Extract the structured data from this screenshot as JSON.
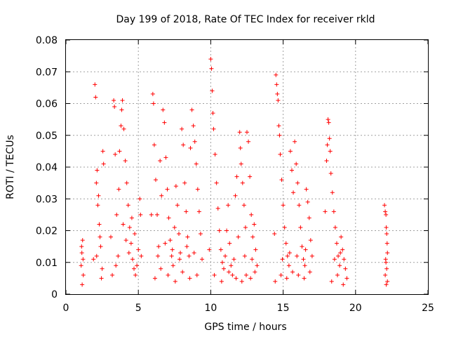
{
  "chart_data": {
    "type": "scatter",
    "title": "Day 199 of 2018, Rate Of TEC Index for receiver rkld",
    "xlabel": "GPS time / hours",
    "ylabel": "ROTI / TECUs",
    "xlim": [
      0,
      25
    ],
    "ylim": [
      0,
      0.08
    ],
    "x_ticks": [
      0,
      5,
      10,
      15,
      20,
      25
    ],
    "x_tick_labels": [
      "0",
      "5",
      "10",
      "15",
      "20",
      "25"
    ],
    "y_ticks": [
      0,
      0.01,
      0.02,
      0.03,
      0.04,
      0.05,
      0.06,
      0.07,
      0.08
    ],
    "y_tick_labels": [
      "0",
      "0.01",
      "0.02",
      "0.03",
      "0.04",
      "0.05",
      "0.06",
      "0.07",
      "0.08"
    ],
    "grid": true,
    "marker": "+",
    "color": "#ff0000",
    "series": [
      {
        "name": "ROTI",
        "points": [
          [
            1.05,
            0.009
          ],
          [
            1.1,
            0.013
          ],
          [
            1.15,
            0.017
          ],
          [
            1.2,
            0.006
          ],
          [
            1.12,
            0.003
          ],
          [
            1.18,
            0.011
          ],
          [
            1.08,
            0.015
          ],
          [
            1.9,
            0.011
          ],
          [
            2.0,
            0.066
          ],
          [
            2.05,
            0.062
          ],
          [
            2.1,
            0.035
          ],
          [
            2.15,
            0.039
          ],
          [
            2.2,
            0.028
          ],
          [
            2.3,
            0.022
          ],
          [
            2.4,
            0.015
          ],
          [
            2.5,
            0.008
          ],
          [
            2.55,
            0.045
          ],
          [
            2.6,
            0.041
          ],
          [
            2.45,
            0.005
          ],
          [
            2.35,
            0.018
          ],
          [
            2.25,
            0.031
          ],
          [
            2.12,
            0.012
          ],
          [
            3.1,
            0.018
          ],
          [
            3.3,
            0.061
          ],
          [
            3.35,
            0.059
          ],
          [
            3.4,
            0.044
          ],
          [
            3.5,
            0.025
          ],
          [
            3.6,
            0.012
          ],
          [
            3.7,
            0.045
          ],
          [
            3.8,
            0.053
          ],
          [
            3.85,
            0.058
          ],
          [
            3.9,
            0.061
          ],
          [
            4.0,
            0.052
          ],
          [
            4.1,
            0.042
          ],
          [
            4.2,
            0.035
          ],
          [
            4.3,
            0.028
          ],
          [
            4.4,
            0.021
          ],
          [
            4.5,
            0.016
          ],
          [
            4.6,
            0.011
          ],
          [
            4.7,
            0.008
          ],
          [
            4.8,
            0.006
          ],
          [
            4.9,
            0.009
          ],
          [
            5.0,
            0.014
          ],
          [
            5.1,
            0.03
          ],
          [
            5.15,
            0.025
          ],
          [
            5.2,
            0.012
          ],
          [
            3.2,
            0.006
          ],
          [
            3.45,
            0.009
          ],
          [
            3.65,
            0.033
          ],
          [
            3.95,
            0.022
          ],
          [
            4.15,
            0.017
          ],
          [
            4.35,
            0.013
          ],
          [
            4.55,
            0.024
          ],
          [
            4.75,
            0.019
          ],
          [
            5.9,
            0.025
          ],
          [
            6.0,
            0.063
          ],
          [
            6.05,
            0.06
          ],
          [
            6.1,
            0.047
          ],
          [
            6.2,
            0.036
          ],
          [
            6.3,
            0.025
          ],
          [
            6.4,
            0.015
          ],
          [
            6.5,
            0.042
          ],
          [
            6.6,
            0.031
          ],
          [
            6.7,
            0.058
          ],
          [
            6.8,
            0.054
          ],
          [
            6.9,
            0.043
          ],
          [
            7.0,
            0.033
          ],
          [
            7.1,
            0.024
          ],
          [
            7.2,
            0.017
          ],
          [
            7.3,
            0.012
          ],
          [
            7.4,
            0.009
          ],
          [
            7.5,
            0.021
          ],
          [
            7.6,
            0.034
          ],
          [
            7.7,
            0.028
          ],
          [
            7.8,
            0.019
          ],
          [
            7.9,
            0.013
          ],
          [
            8.0,
            0.052
          ],
          [
            8.1,
            0.047
          ],
          [
            8.2,
            0.035
          ],
          [
            8.3,
            0.026
          ],
          [
            8.4,
            0.018
          ],
          [
            8.5,
            0.012
          ],
          [
            8.6,
            0.046
          ],
          [
            8.7,
            0.058
          ],
          [
            8.8,
            0.053
          ],
          [
            8.9,
            0.048
          ],
          [
            9.0,
            0.041
          ],
          [
            9.1,
            0.033
          ],
          [
            9.2,
            0.026
          ],
          [
            9.3,
            0.019
          ],
          [
            9.4,
            0.011
          ],
          [
            6.15,
            0.005
          ],
          [
            6.55,
            0.008
          ],
          [
            7.05,
            0.006
          ],
          [
            7.55,
            0.004
          ],
          [
            8.05,
            0.007
          ],
          [
            8.55,
            0.005
          ],
          [
            9.05,
            0.006
          ],
          [
            6.35,
            0.012
          ],
          [
            6.85,
            0.016
          ],
          [
            7.35,
            0.014
          ],
          [
            7.85,
            0.011
          ],
          [
            8.35,
            0.015
          ],
          [
            8.85,
            0.013
          ],
          [
            9.9,
            0.014
          ],
          [
            10.0,
            0.074
          ],
          [
            10.05,
            0.071
          ],
          [
            10.1,
            0.064
          ],
          [
            10.15,
            0.057
          ],
          [
            10.2,
            0.052
          ],
          [
            10.3,
            0.044
          ],
          [
            10.4,
            0.035
          ],
          [
            10.5,
            0.027
          ],
          [
            10.6,
            0.02
          ],
          [
            10.7,
            0.014
          ],
          [
            10.8,
            0.01
          ],
          [
            10.9,
            0.008
          ],
          [
            11.0,
            0.012
          ],
          [
            11.1,
            0.02
          ],
          [
            11.2,
            0.028
          ],
          [
            11.3,
            0.016
          ],
          [
            11.4,
            0.009
          ],
          [
            11.5,
            0.006
          ],
          [
            11.6,
            0.011
          ],
          [
            11.7,
            0.031
          ],
          [
            11.8,
            0.037
          ],
          [
            11.9,
            0.018
          ],
          [
            10.25,
            0.006
          ],
          [
            10.75,
            0.004
          ],
          [
            11.25,
            0.007
          ],
          [
            11.75,
            0.005
          ],
          [
            12.0,
            0.051
          ],
          [
            12.05,
            0.046
          ],
          [
            12.1,
            0.041
          ],
          [
            12.2,
            0.035
          ],
          [
            12.3,
            0.028
          ],
          [
            12.4,
            0.021
          ],
          [
            12.5,
            0.051
          ],
          [
            12.6,
            0.048
          ],
          [
            12.7,
            0.037
          ],
          [
            12.8,
            0.025
          ],
          [
            12.9,
            0.018
          ],
          [
            13.0,
            0.022
          ],
          [
            13.1,
            0.014
          ],
          [
            13.2,
            0.009
          ],
          [
            12.15,
            0.004
          ],
          [
            12.45,
            0.006
          ],
          [
            12.75,
            0.005
          ],
          [
            13.05,
            0.007
          ],
          [
            12.35,
            0.012
          ],
          [
            12.85,
            0.011
          ],
          [
            14.4,
            0.019
          ],
          [
            14.5,
            0.069
          ],
          [
            14.55,
            0.066
          ],
          [
            14.6,
            0.063
          ],
          [
            14.65,
            0.061
          ],
          [
            14.7,
            0.053
          ],
          [
            14.75,
            0.05
          ],
          [
            14.8,
            0.044
          ],
          [
            14.9,
            0.036
          ],
          [
            15.0,
            0.028
          ],
          [
            15.1,
            0.021
          ],
          [
            15.2,
            0.016
          ],
          [
            15.3,
            0.012
          ],
          [
            15.4,
            0.009
          ],
          [
            15.5,
            0.045
          ],
          [
            15.6,
            0.039
          ],
          [
            15.7,
            0.032
          ],
          [
            15.8,
            0.048
          ],
          [
            15.9,
            0.041
          ],
          [
            16.0,
            0.035
          ],
          [
            16.1,
            0.028
          ],
          [
            16.2,
            0.021
          ],
          [
            16.3,
            0.015
          ],
          [
            16.4,
            0.011
          ],
          [
            16.5,
            0.009
          ],
          [
            16.6,
            0.033
          ],
          [
            16.7,
            0.029
          ],
          [
            16.8,
            0.024
          ],
          [
            16.9,
            0.017
          ],
          [
            17.0,
            0.012
          ],
          [
            14.45,
            0.004
          ],
          [
            14.85,
            0.006
          ],
          [
            15.25,
            0.005
          ],
          [
            15.65,
            0.007
          ],
          [
            16.05,
            0.006
          ],
          [
            16.45,
            0.005
          ],
          [
            16.85,
            0.007
          ],
          [
            14.95,
            0.011
          ],
          [
            15.45,
            0.013
          ],
          [
            15.95,
            0.012
          ],
          [
            16.55,
            0.014
          ],
          [
            17.9,
            0.026
          ],
          [
            18.0,
            0.042
          ],
          [
            18.05,
            0.047
          ],
          [
            18.1,
            0.055
          ],
          [
            18.15,
            0.054
          ],
          [
            18.2,
            0.049
          ],
          [
            18.25,
            0.045
          ],
          [
            18.3,
            0.038
          ],
          [
            18.4,
            0.032
          ],
          [
            18.5,
            0.026
          ],
          [
            18.6,
            0.021
          ],
          [
            18.7,
            0.016
          ],
          [
            18.8,
            0.012
          ],
          [
            18.9,
            0.009
          ],
          [
            19.0,
            0.018
          ],
          [
            19.1,
            0.014
          ],
          [
            19.2,
            0.011
          ],
          [
            19.3,
            0.008
          ],
          [
            19.4,
            0.005
          ],
          [
            18.35,
            0.004
          ],
          [
            18.75,
            0.006
          ],
          [
            19.15,
            0.003
          ],
          [
            18.55,
            0.011
          ],
          [
            18.95,
            0.013
          ],
          [
            22.0,
            0.028
          ],
          [
            22.05,
            0.026
          ],
          [
            22.1,
            0.025
          ],
          [
            22.12,
            0.021
          ],
          [
            22.15,
            0.019
          ],
          [
            22.18,
            0.016
          ],
          [
            22.2,
            0.013
          ],
          [
            22.1,
            0.01
          ],
          [
            22.15,
            0.008
          ],
          [
            22.05,
            0.006
          ],
          [
            22.2,
            0.004
          ],
          [
            22.12,
            0.003
          ],
          [
            22.08,
            0.011
          ]
        ]
      }
    ]
  }
}
